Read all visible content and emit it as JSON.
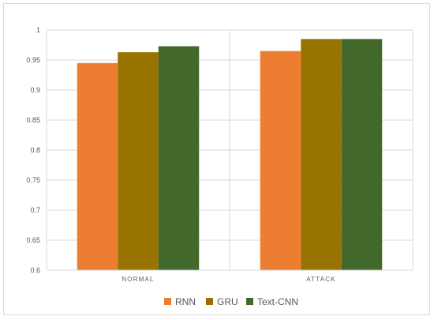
{
  "chart_data": {
    "type": "bar",
    "title": "",
    "xlabel": "",
    "ylabel": "",
    "categories": [
      "NORMAL",
      "ATTACK"
    ],
    "series": [
      {
        "name": "RNN",
        "color": "#ed7d31",
        "values": [
          0.945,
          0.965
        ]
      },
      {
        "name": "GRU",
        "color": "#997300",
        "values": [
          0.963,
          0.985
        ]
      },
      {
        "name": "Text-CNN",
        "color": "#43682b",
        "values": [
          0.973,
          0.985
        ]
      }
    ],
    "ylim": [
      0.6,
      1.0
    ],
    "yticks": [
      "0.6",
      "0.65",
      "0.7",
      "0.75",
      "0.8",
      "0.85",
      "0.9",
      "0.95",
      "1"
    ],
    "grid": true,
    "legend_position": "bottom"
  }
}
